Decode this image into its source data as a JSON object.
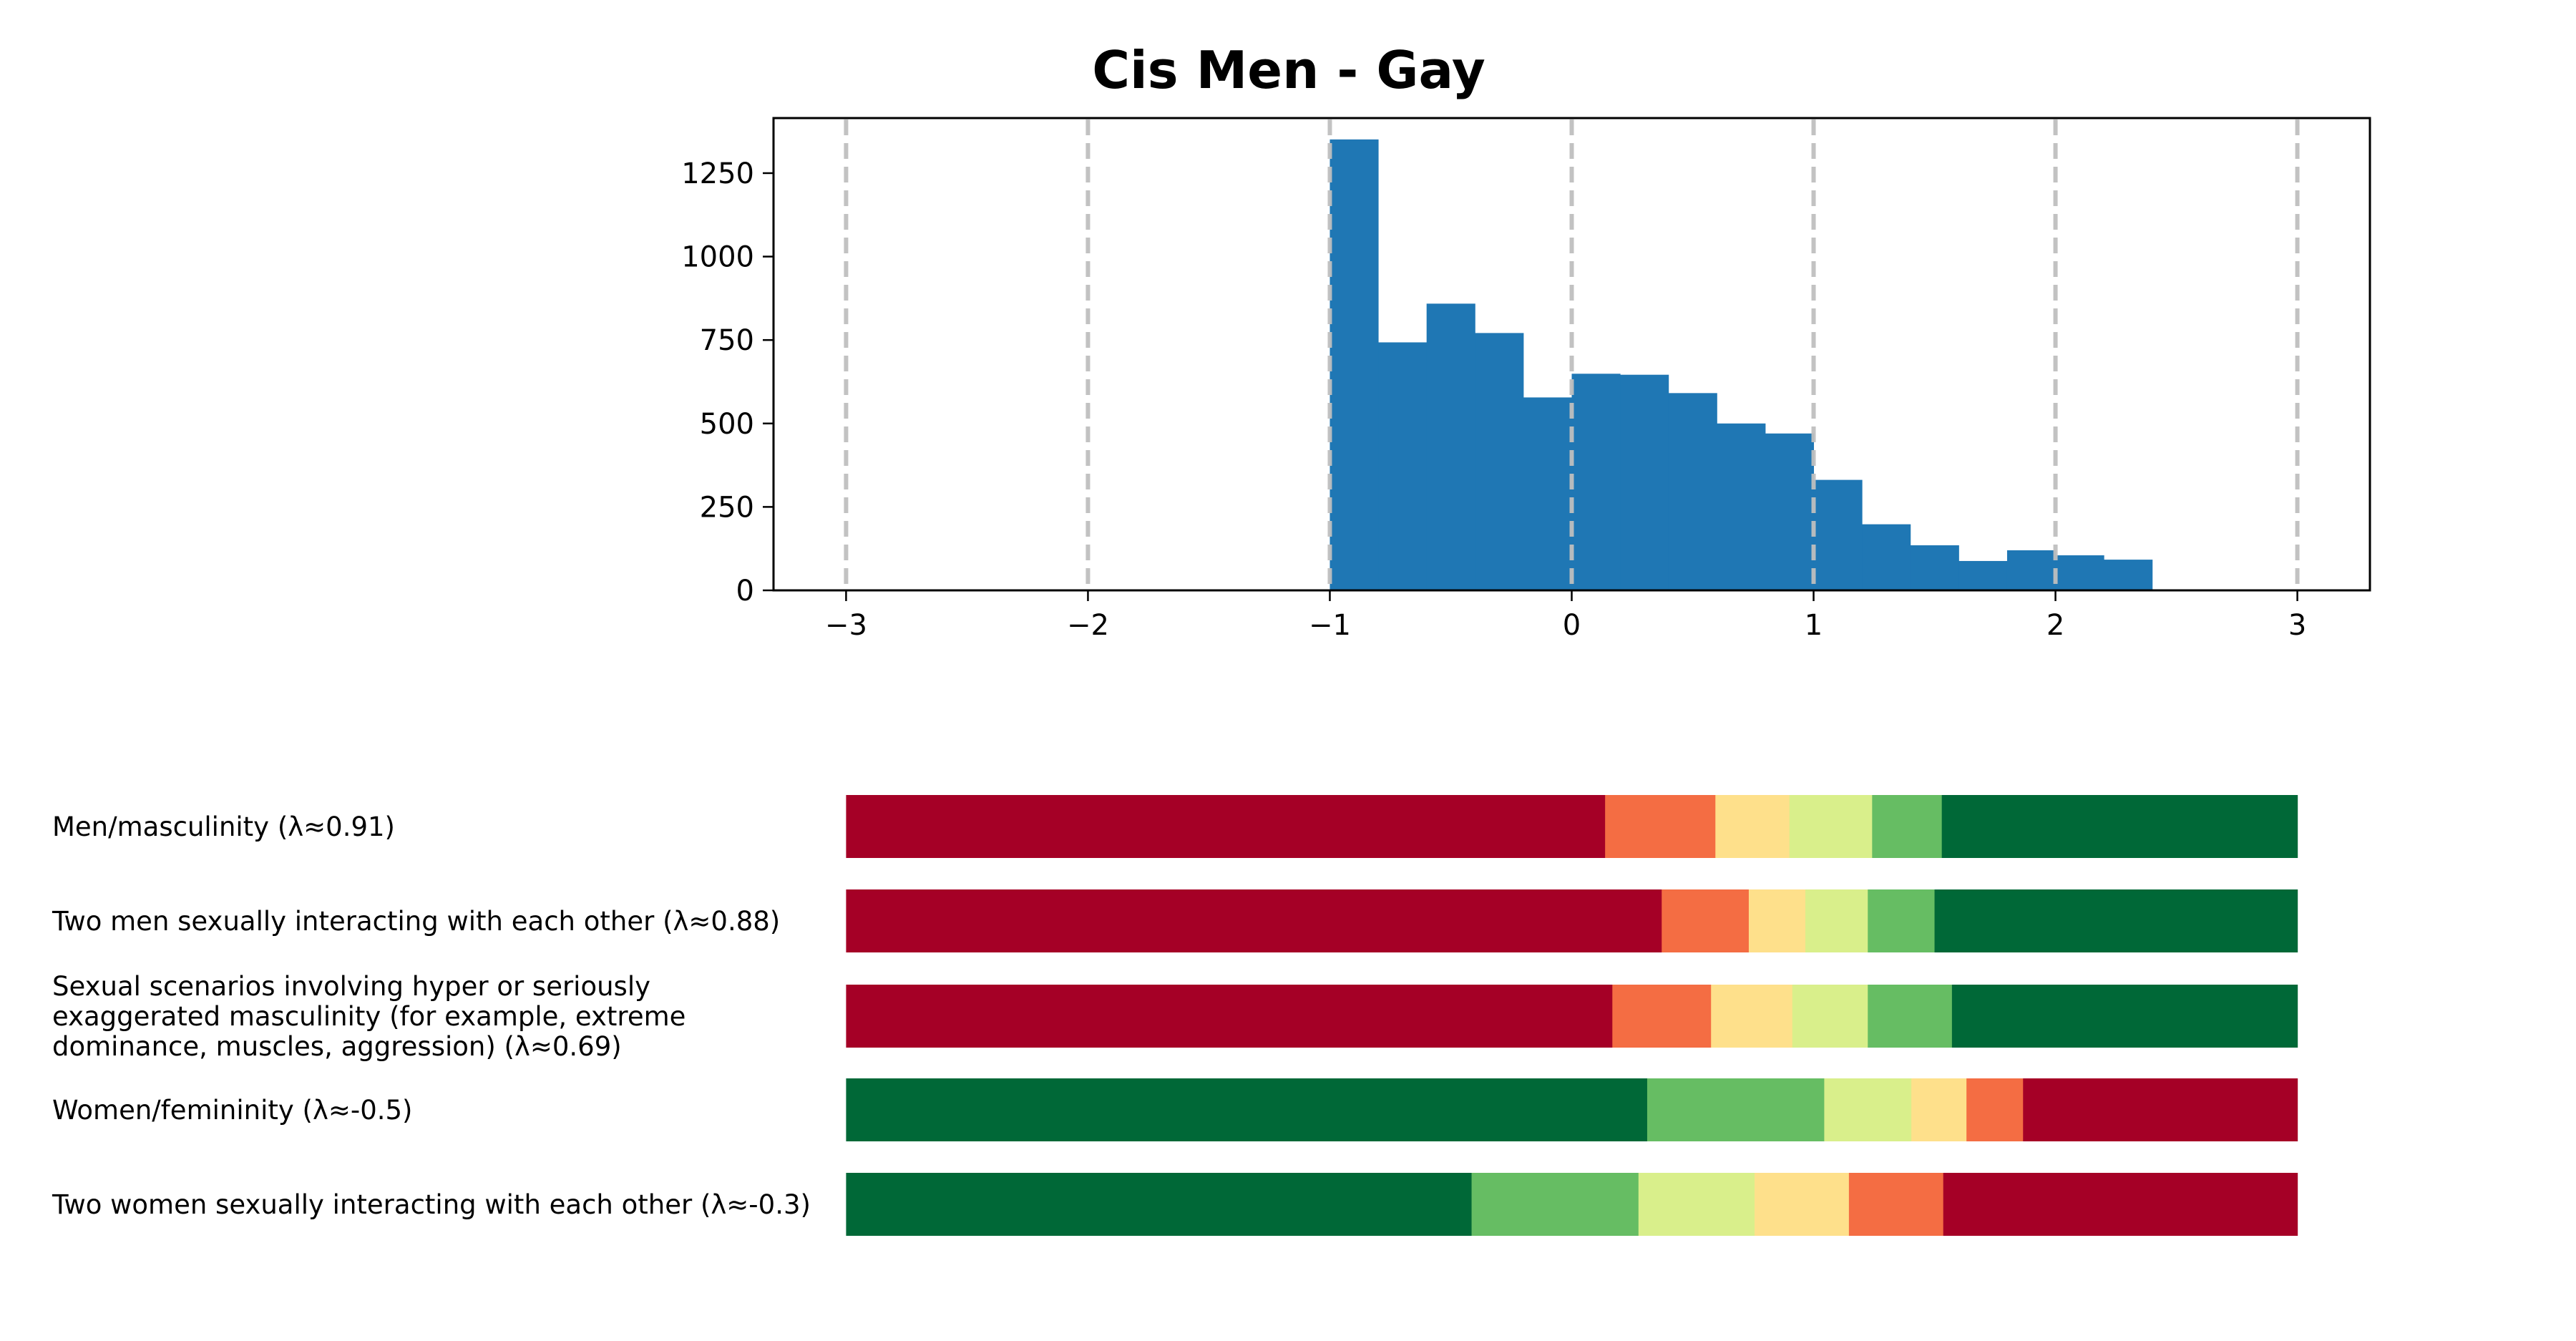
{
  "chart_data": [
    {
      "type": "bar",
      "subtype": "histogram",
      "title": "Cis Men - Gay",
      "xlabel": "",
      "ylabel": "",
      "xlim": [
        -3.3,
        3.3
      ],
      "ylim": [
        0,
        1415
      ],
      "xticks": [
        -3,
        -2,
        -1,
        0,
        1,
        2,
        3
      ],
      "xtick_labels": [
        "−3",
        "−2",
        "−1",
        "0",
        "1",
        "2",
        "3"
      ],
      "yticks": [
        0,
        250,
        500,
        750,
        1000,
        1250
      ],
      "ytick_labels": [
        "0",
        "250",
        "500",
        "750",
        "1000",
        "1250"
      ],
      "vertical_reference_lines": [
        -3,
        -2,
        -1,
        0,
        1,
        2,
        3
      ],
      "grid": false,
      "bar_color": "#1f77b4",
      "gridline_color": "#bfbfbf",
      "bin_edges": [
        -1.0,
        -0.8,
        -0.6,
        -0.4,
        -0.2,
        0.0,
        0.2,
        0.4,
        0.6,
        0.8,
        1.0,
        1.2,
        1.4,
        1.6,
        1.8,
        2.0,
        2.2,
        2.4
      ],
      "values": [
        1351,
        743,
        859,
        771,
        578,
        649,
        646,
        591,
        500,
        470,
        331,
        198,
        135,
        88,
        120,
        105,
        92
      ]
    },
    {
      "type": "bar",
      "subtype": "stacked-horizontal-100%",
      "title": "",
      "xlim": [
        -3.3,
        3.3
      ],
      "bar_span": [
        -3,
        3
      ],
      "legend": "none",
      "segment_colors": [
        "#a50026",
        "#f46d43",
        "#fee08b",
        "#d9ef8b",
        "#66bd63",
        "#006837"
      ],
      "rows": [
        {
          "label": "Men/masculinity (λ≈0.91)",
          "order": "red-to-green",
          "segments": [
            52.3,
            7.6,
            5.1,
            5.7,
            4.8,
            24.5
          ]
        },
        {
          "label": "Two men sexually interacting with each other (λ≈0.88)",
          "order": "red-to-green",
          "segments": [
            56.2,
            6.0,
            3.9,
            4.3,
            4.6,
            25.0
          ]
        },
        {
          "label": "Sexual scenarios involving hyper or seriously\nexaggerated masculinity (for example, extreme\ndominance, muscles, aggression) (λ≈0.69)",
          "order": "red-to-green",
          "segments": [
            52.8,
            6.8,
            5.6,
            5.2,
            5.8,
            23.8
          ]
        },
        {
          "label": "Women/femininity (λ≈-0.5)",
          "order": "green-to-red",
          "segments": [
            55.2,
            12.2,
            6.0,
            3.8,
            3.9,
            18.9
          ]
        },
        {
          "label": "Two women sexually interacting with each other (λ≈-0.3)",
          "order": "green-to-red",
          "segments": [
            43.1,
            11.5,
            8.0,
            6.5,
            6.5,
            24.4
          ]
        }
      ]
    }
  ]
}
